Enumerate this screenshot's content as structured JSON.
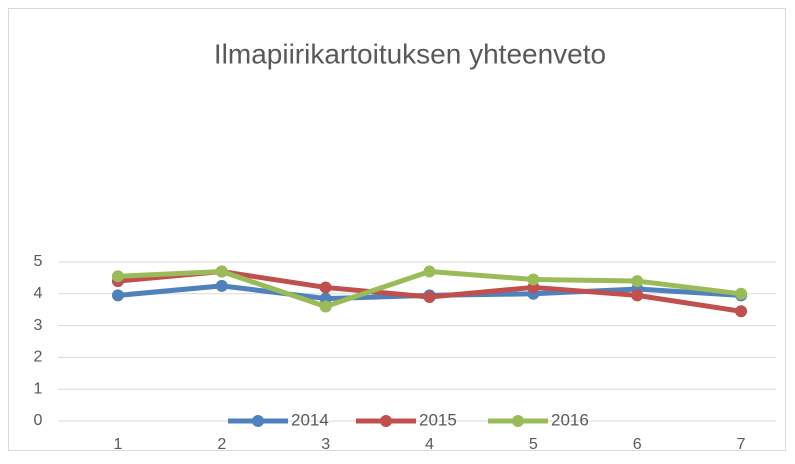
{
  "chart_data": {
    "type": "line",
    "title": "Ilmapiirikartoituksen yhteenveto",
    "categories": [
      "1",
      "2",
      "3",
      "4",
      "5",
      "6",
      "7"
    ],
    "series": [
      {
        "name": "2014",
        "color": "#4f81bd",
        "values": [
          3.95,
          4.25,
          3.85,
          3.95,
          4.0,
          4.15,
          3.95
        ]
      },
      {
        "name": "2015",
        "color": "#c0504d",
        "values": [
          4.4,
          4.7,
          4.2,
          3.9,
          4.2,
          3.95,
          3.45
        ]
      },
      {
        "name": "2016",
        "color": "#9bbb59",
        "values": [
          4.55,
          4.7,
          3.6,
          4.7,
          4.45,
          4.4,
          4.0
        ]
      }
    ],
    "ylim": [
      0,
      5
    ],
    "yticks": [
      0,
      1,
      2,
      3,
      4,
      5
    ],
    "grid": true,
    "legend": "bottom"
  }
}
